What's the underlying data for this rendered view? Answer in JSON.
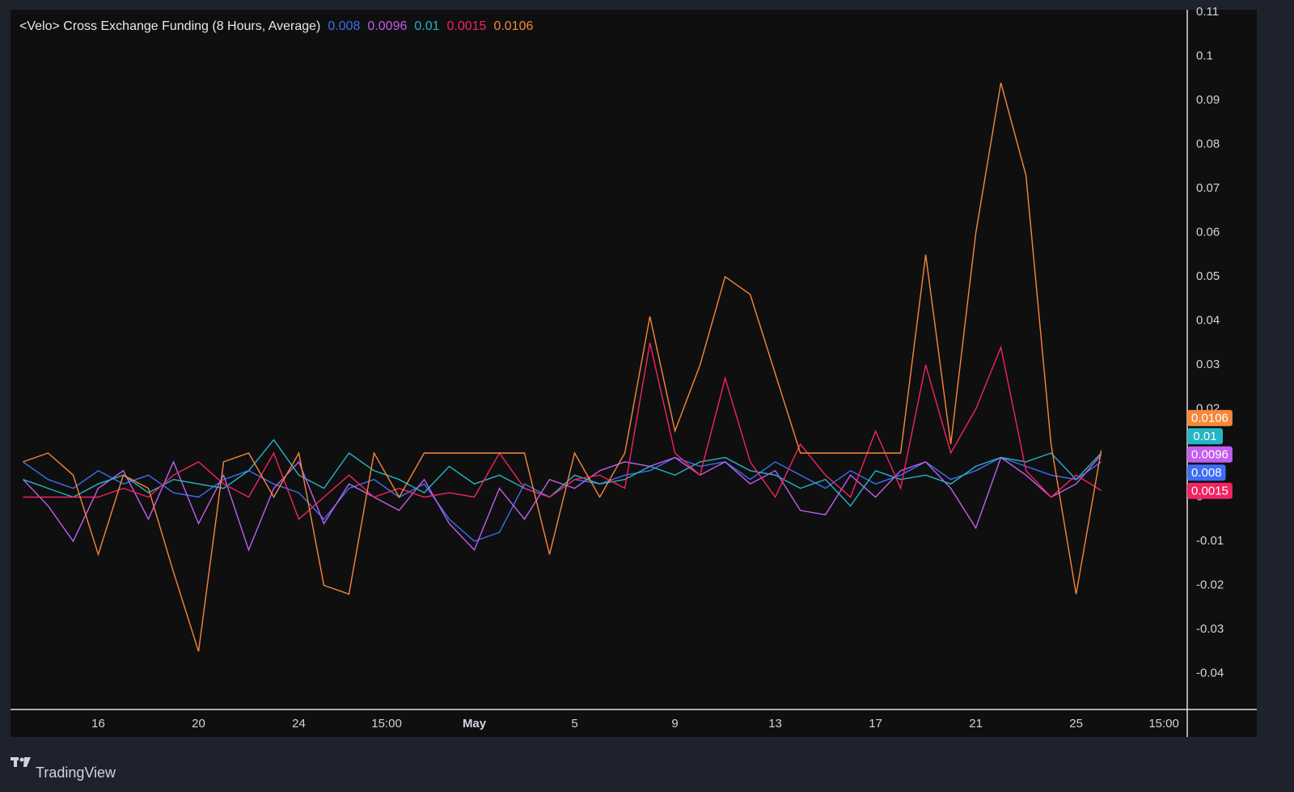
{
  "chart_data": {
    "type": "line",
    "title": "<Velo> Cross Exchange Funding (8 Hours, Average)",
    "footer": "TradingView",
    "x": [
      13,
      14,
      15,
      16,
      17,
      18,
      19,
      20,
      21,
      22,
      23,
      24,
      25,
      26,
      27,
      28,
      29,
      30,
      31,
      32,
      33,
      34,
      35,
      36,
      37,
      38,
      39,
      40,
      41,
      42,
      43,
      44,
      45,
      46,
      47,
      48,
      49,
      50,
      51,
      52,
      53,
      54,
      55,
      56
    ],
    "xlim": [
      12.5,
      59.4
    ],
    "xticks": [
      16,
      20,
      24,
      {
        "value": 27.5,
        "label": "15:00"
      },
      {
        "value": 31,
        "label": "May"
      },
      {
        "value": 35,
        "label": "5"
      },
      {
        "value": 39,
        "label": "9"
      },
      {
        "value": 43,
        "label": "13"
      },
      {
        "value": 47,
        "label": "17"
      },
      {
        "value": 51,
        "label": "21"
      },
      {
        "value": 55,
        "label": "25"
      },
      {
        "value": 58.5,
        "label": "15:00"
      }
    ],
    "ylim": [
      -0.048,
      0.1106
    ],
    "yticks": [
      -0.04,
      -0.03,
      -0.02,
      -0.01,
      0,
      0.01,
      0.02,
      0.03,
      0.04,
      0.05,
      0.06,
      0.07,
      0.08,
      0.09,
      0.1,
      0.11
    ],
    "grid": false,
    "series": [
      {
        "color": "#3d6ef5",
        "values": [
          0.008,
          0.004,
          0.002,
          0.006,
          0.003,
          0.005,
          0.001,
          0.0,
          0.004,
          0.006,
          0.003,
          0.001,
          -0.005,
          0.002,
          0.004,
          0.0,
          0.003,
          -0.005,
          -0.01,
          -0.008,
          0.003,
          0.0,
          0.004,
          0.003,
          0.005,
          0.006,
          0.009,
          0.007,
          0.008,
          0.004,
          0.008,
          0.005,
          0.002,
          0.006,
          0.003,
          0.005,
          0.008,
          0.004,
          0.006,
          0.009,
          0.007,
          0.005,
          0.004,
          0.008
        ]
      },
      {
        "color": "#c35ef0",
        "values": [
          0.004,
          -0.002,
          -0.01,
          0.002,
          0.006,
          -0.005,
          0.008,
          -0.006,
          0.005,
          -0.012,
          0.002,
          0.008,
          -0.006,
          0.003,
          0.0,
          -0.003,
          0.004,
          -0.006,
          -0.012,
          0.002,
          -0.005,
          0.004,
          0.002,
          0.006,
          0.008,
          0.007,
          0.009,
          0.005,
          0.008,
          0.003,
          0.006,
          -0.003,
          -0.004,
          0.005,
          0.0,
          0.006,
          0.008,
          0.002,
          -0.007,
          0.009,
          0.005,
          0.0,
          0.003,
          0.0096
        ]
      },
      {
        "color": "#26b5c6",
        "values": [
          0.004,
          0.002,
          0.0,
          0.003,
          0.005,
          0.001,
          0.004,
          0.003,
          0.002,
          0.006,
          0.013,
          0.005,
          0.002,
          0.01,
          0.006,
          0.004,
          0.001,
          0.007,
          0.003,
          0.005,
          0.002,
          0.0,
          0.005,
          0.003,
          0.004,
          0.007,
          0.005,
          0.008,
          0.009,
          0.006,
          0.005,
          0.002,
          0.004,
          -0.002,
          0.006,
          0.004,
          0.005,
          0.003,
          0.007,
          0.009,
          0.008,
          0.01,
          0.004,
          0.01
        ]
      },
      {
        "color": "#f2245f",
        "values": [
          0.0,
          0.0,
          0.0,
          0.0,
          0.002,
          0.0,
          0.005,
          0.008,
          0.003,
          0.0,
          0.01,
          -0.005,
          0.0,
          0.005,
          0.0,
          0.002,
          0.0,
          0.001,
          0.0,
          0.01,
          0.002,
          0.0,
          0.004,
          0.005,
          0.002,
          0.035,
          0.01,
          0.005,
          0.027,
          0.008,
          0.0,
          0.012,
          0.005,
          0.0,
          0.015,
          0.002,
          0.03,
          0.01,
          0.02,
          0.034,
          0.006,
          0.0,
          0.005,
          0.0015
        ]
      },
      {
        "color": "#f7873a",
        "values": [
          0.008,
          0.01,
          0.005,
          -0.013,
          0.005,
          0.002,
          -0.017,
          -0.035,
          0.008,
          0.01,
          0.0,
          0.01,
          -0.02,
          -0.022,
          0.01,
          0.0,
          0.01,
          0.01,
          0.01,
          0.01,
          0.01,
          -0.013,
          0.01,
          0.0,
          0.01,
          0.041,
          0.015,
          0.03,
          0.05,
          0.046,
          0.028,
          0.01,
          0.01,
          0.01,
          0.01,
          0.01,
          0.055,
          0.012,
          0.06,
          0.094,
          0.073,
          0.012,
          -0.022,
          0.0106
        ]
      }
    ]
  }
}
